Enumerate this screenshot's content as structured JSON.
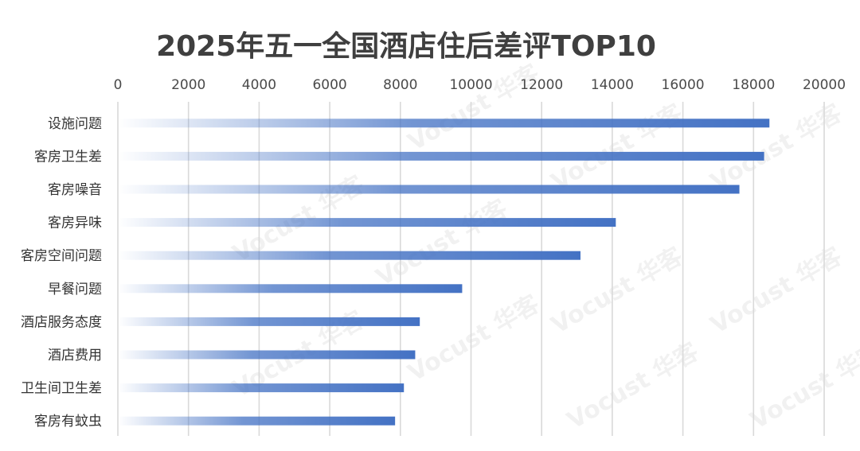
{
  "chart_data": {
    "type": "bar",
    "orientation": "horizontal",
    "title": "2025年五一全国酒店住后差评TOP10",
    "categories": [
      "设施问题",
      "客房卫生差",
      "客房噪音",
      "客房异味",
      "客房空间问题",
      "早餐问题",
      "酒店服务态度",
      "酒店费用",
      "卫生间卫生差",
      "客房有蚊虫"
    ],
    "values": [
      18450,
      18300,
      17600,
      14100,
      13100,
      9750,
      8550,
      8420,
      8100,
      7850
    ],
    "xlim": [
      0,
      20000
    ],
    "xticks": [
      0,
      2000,
      4000,
      6000,
      8000,
      10000,
      12000,
      14000,
      16000,
      18000,
      20000
    ],
    "xaxis_position": "top",
    "grid": true,
    "bar_color": "#4472c4",
    "bar_fill": "gradient-left-to-right"
  },
  "watermark": "Vocust 华客"
}
